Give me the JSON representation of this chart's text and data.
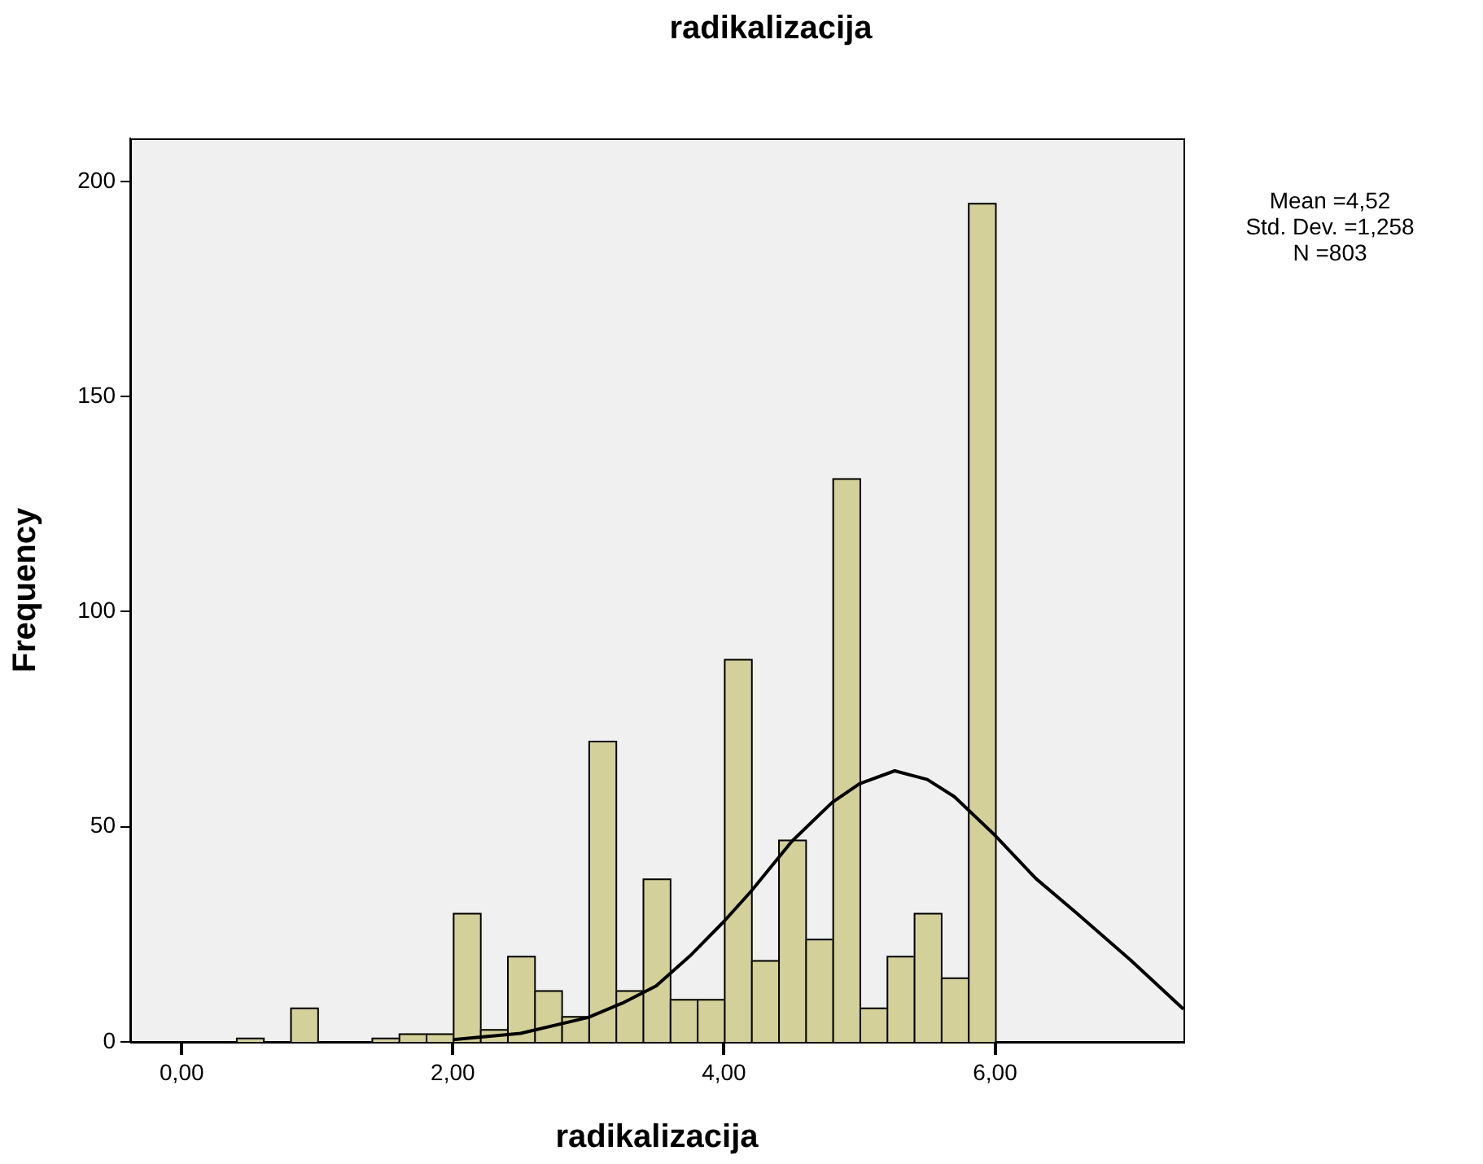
{
  "chart_data": {
    "type": "histogram",
    "title": "radikalizacija",
    "xlabel": "radikalizacija",
    "ylabel": "Frequency",
    "bins": [
      0.4,
      0.6,
      0.8,
      1.0,
      1.2,
      1.4,
      1.6,
      1.8,
      2.0,
      2.2,
      2.4,
      2.6,
      2.8,
      3.0,
      3.2,
      3.4,
      3.6,
      3.8,
      4.0,
      4.2,
      4.4,
      4.6,
      4.8,
      5.0,
      5.2,
      5.4,
      5.6,
      5.8,
      6.0
    ],
    "values": [
      1,
      0,
      8,
      0,
      0,
      1,
      2,
      2,
      30,
      3,
      20,
      12,
      6,
      70,
      12,
      38,
      10,
      10,
      89,
      19,
      47,
      24,
      131,
      8,
      20,
      30,
      15,
      195
    ],
    "color": "#d4d09a",
    "series": [
      {
        "type": "line",
        "color": "#000000",
        "x": [
          2,
          2.5,
          3,
          3.25,
          3.5,
          3.75,
          4,
          4.2,
          4.5,
          4.8,
          5,
          5.26,
          5.5,
          5.7,
          6,
          6.3,
          6.6,
          7,
          7.39
        ],
        "values": [
          0.5,
          2,
          5.7,
          9,
          13,
          20,
          28,
          35,
          46.6,
          55.7,
          60,
          63,
          61,
          57,
          48,
          38,
          30,
          19,
          7.6
        ]
      }
    ],
    "xlim": [
      -0.38,
      7.39
    ],
    "ylim": [
      0,
      210
    ],
    "xticks": [
      {
        "value": 0,
        "label": "0,00"
      },
      {
        "value": 2,
        "label": "2,00"
      },
      {
        "value": 4,
        "label": "4,00"
      },
      {
        "value": 6,
        "label": "6,00"
      }
    ],
    "yticks": [
      0,
      50,
      100,
      150,
      200
    ],
    "grid": false,
    "legend": false,
    "marker": "none",
    "line_style": "solid",
    "annotations": [
      "Mean =4,52",
      "Std. Dev. =1,258",
      "N =803"
    ]
  }
}
